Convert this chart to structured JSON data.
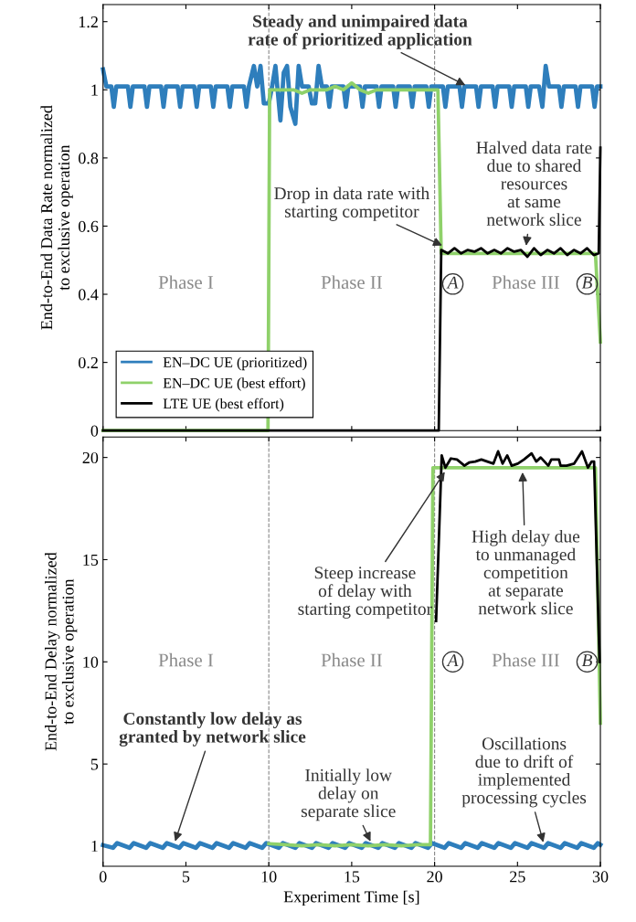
{
  "chart_data": [
    {
      "type": "line",
      "ylabel": "End-to-End Data Rate normalized\nto exclusive operation",
      "xlim": [
        0,
        30
      ],
      "xticks": [
        0,
        5,
        10,
        15,
        20,
        25,
        30
      ],
      "ylim": [
        0,
        1.25
      ],
      "yticks": [
        0,
        0.2,
        0.4,
        0.6,
        0.8,
        1,
        1.2
      ],
      "tick_labels": "y",
      "grid": false,
      "legend": "bottom left",
      "marker": "none",
      "line_style": "solid",
      "ref_lines": [
        {
          "axis": "x",
          "value": 10,
          "color": "#888888",
          "line_style": "dashed"
        },
        {
          "axis": "x",
          "value": 20,
          "color": "#888888",
          "line_style": "dashed"
        }
      ],
      "series": [
        {
          "name": "EN–DC UE (prioritized)",
          "color": "#2e7ebc",
          "x": [
            0,
            0.2,
            0.5,
            0.65,
            0.8,
            1.5,
            1.65,
            1.8,
            2.5,
            2.65,
            2.8,
            3.5,
            3.65,
            3.8,
            4.5,
            4.65,
            4.8,
            5.5,
            5.65,
            5.8,
            6.5,
            6.65,
            6.8,
            7.5,
            7.65,
            7.8,
            8.5,
            8.65,
            8.8,
            9.1,
            9.3,
            9.5,
            9.7,
            10.0,
            10.2,
            10.4,
            10.7,
            10.9,
            11.1,
            11.3,
            11.6,
            11.8,
            12.0,
            12.4,
            12.6,
            12.8,
            13.0,
            13.2,
            13.5,
            13.65,
            13.8,
            14.5,
            14.65,
            14.8,
            15.5,
            15.65,
            15.8,
            16.5,
            16.65,
            16.8,
            17.5,
            17.65,
            17.8,
            18.5,
            18.65,
            18.8,
            19.5,
            19.65,
            19.8,
            20.5,
            20.65,
            20.8,
            21.5,
            21.65,
            21.8,
            22.5,
            22.65,
            22.8,
            23.5,
            23.65,
            23.8,
            24.5,
            24.65,
            24.8,
            25.5,
            25.65,
            25.8,
            26.3,
            26.5,
            26.7,
            26.9,
            27.5,
            27.65,
            27.8,
            28.5,
            28.65,
            28.8,
            29.5,
            29.65,
            29.8,
            30
          ],
          "values": [
            1.06,
            1.01,
            1.01,
            0.95,
            1.01,
            1.01,
            0.95,
            1.01,
            1.01,
            0.95,
            1.01,
            1.01,
            0.95,
            1.01,
            1.01,
            0.95,
            1.01,
            1.01,
            0.95,
            1.01,
            1.01,
            0.95,
            1.01,
            1.01,
            0.95,
            1.01,
            1.01,
            0.95,
            1.01,
            1.07,
            1.01,
            1.07,
            0.96,
            0.96,
            1.01,
            1.07,
            0.91,
            1.05,
            1.07,
            0.95,
            0.9,
            1.07,
            1.01,
            1.01,
            0.96,
            0.96,
            1.07,
            1.01,
            1.01,
            0.95,
            1.01,
            1.01,
            0.95,
            1.01,
            1.01,
            0.95,
            1.01,
            1.01,
            0.95,
            1.01,
            1.01,
            0.95,
            1.01,
            1.01,
            0.95,
            1.01,
            1.01,
            0.95,
            1.01,
            1.01,
            0.95,
            1.01,
            1.01,
            0.95,
            1.01,
            1.01,
            0.95,
            1.01,
            1.01,
            0.95,
            1.01,
            1.01,
            0.95,
            1.01,
            1.01,
            0.95,
            1.01,
            1.01,
            0.95,
            1.07,
            1.01,
            1.01,
            0.95,
            1.01,
            1.01,
            0.95,
            1.01,
            1.01,
            0.95,
            1.01,
            1.01
          ]
        },
        {
          "name": "EN–DC UE (best effort)",
          "color": "#8fd16a",
          "x": [
            0,
            9.95,
            10.05,
            11.5,
            12.0,
            12.5,
            13.5,
            14,
            14.5,
            15,
            15.5,
            16,
            16.5,
            17,
            17.5,
            20.2,
            20.4,
            29.7,
            30
          ],
          "values": [
            0,
            0,
            1.0,
            1.0,
            0.99,
            1.0,
            1.0,
            1.01,
            1.0,
            1.02,
            1.0,
            0.99,
            1.0,
            1.0,
            1.0,
            1.0,
            0.52,
            0.52,
            0.26
          ]
        },
        {
          "name": "LTE UE (best effort)",
          "color": "#000000",
          "x": [
            0,
            20.25,
            20.4,
            20.8,
            21.2,
            21.6,
            22,
            22.4,
            22.8,
            23.2,
            23.6,
            24,
            24.4,
            24.8,
            25.2,
            25.6,
            26,
            26.4,
            26.8,
            27.2,
            27.6,
            28,
            28.4,
            28.8,
            29.2,
            29.6,
            29.9,
            30
          ],
          "values": [
            0,
            0,
            0.53,
            0.52,
            0.535,
            0.52,
            0.53,
            0.525,
            0.535,
            0.52,
            0.53,
            0.52,
            0.535,
            0.525,
            0.53,
            0.51,
            0.535,
            0.515,
            0.53,
            0.52,
            0.535,
            0.515,
            0.53,
            0.52,
            0.535,
            0.515,
            0.52,
            0.83
          ]
        }
      ],
      "annotations": [
        {
          "text": "Steady and unimpaired data\nrate of prioritized application",
          "x": 22,
          "y": 1.01
        },
        {
          "text": "Drop in data rate with\nstarting competitor",
          "x": 20.6,
          "y": 0.54
        },
        {
          "text": "Halved data rate\ndue to shared\nresources\nat same\nnetwork slice",
          "x": 25.5,
          "y": 0.535
        },
        "Phase I",
        "Phase II",
        "A",
        "Phase III",
        "B"
      ]
    },
    {
      "type": "line",
      "xlabel": "Experiment Time [s]",
      "ylabel": "End-to-End Delay normalized\nto exclusive operation",
      "xlim": [
        0,
        30
      ],
      "xticks": [
        0,
        5,
        10,
        15,
        20,
        25,
        30
      ],
      "ylim": [
        0,
        21
      ],
      "yticks": [
        1,
        5,
        10,
        15,
        20
      ],
      "grid": false,
      "marker": "none",
      "line_style": "solid",
      "ref_lines": [
        {
          "axis": "x",
          "value": 10,
          "color": "#888888",
          "line_style": "dashed"
        },
        {
          "axis": "x",
          "value": 20,
          "color": "#888888",
          "line_style": "dashed"
        }
      ],
      "series": [
        {
          "color": "#2e7ebc",
          "x": [
            0,
            0.6,
            0.85,
            1.6,
            1.85,
            2.6,
            2.85,
            3.6,
            3.85,
            4.6,
            4.85,
            5.6,
            5.85,
            6.6,
            6.85,
            7.6,
            7.85,
            8.6,
            8.85,
            9.6,
            9.85,
            10.6,
            10.85,
            11.6,
            11.85,
            12.6,
            12.85,
            13.6,
            13.85,
            14.6,
            14.85,
            15.6,
            15.85,
            16.6,
            16.85,
            17.6,
            17.85,
            18.6,
            18.85,
            19.6,
            19.85,
            20.6,
            20.85,
            21.6,
            21.85,
            22.6,
            22.85,
            23.6,
            23.85,
            24.6,
            24.85,
            25.6,
            25.85,
            26.6,
            26.85,
            27.6,
            27.85,
            28.6,
            28.85,
            29.6,
            29.85,
            30
          ],
          "values": [
            1.03,
            0.9,
            1.13,
            0.9,
            1.13,
            0.9,
            1.13,
            0.9,
            1.13,
            0.9,
            1.13,
            0.9,
            1.13,
            0.9,
            1.13,
            0.9,
            1.13,
            0.9,
            1.13,
            0.9,
            1.13,
            0.9,
            1.13,
            0.9,
            1.13,
            0.9,
            1.13,
            0.9,
            1.13,
            0.9,
            1.13,
            0.9,
            1.13,
            0.9,
            1.13,
            0.9,
            1.13,
            0.9,
            1.13,
            0.9,
            1.13,
            0.9,
            1.13,
            0.9,
            1.13,
            0.9,
            1.13,
            0.9,
            1.13,
            0.9,
            1.13,
            0.9,
            1.13,
            0.9,
            1.13,
            0.9,
            1.13,
            0.9,
            1.13,
            0.9,
            1.13,
            1.05
          ]
        },
        {
          "color": "#8fd16a",
          "x": [
            10,
            11,
            12,
            13,
            14,
            15,
            16,
            17,
            18,
            19,
            19.75,
            19.9,
            29.7,
            30
          ],
          "values": [
            1.1,
            1.05,
            1.0,
            1.05,
            1.0,
            1.05,
            1.0,
            1.05,
            1.0,
            1.05,
            1.05,
            19.5,
            19.5,
            7
          ]
        },
        {
          "color": "#000000",
          "x": [
            20.09,
            20.43,
            20.65,
            20.98,
            21.35,
            21.8,
            22.08,
            22.45,
            22.82,
            23.18,
            23.55,
            23.83,
            24.1,
            24.38,
            24.65,
            25.02,
            25.39,
            25.85,
            26.13,
            26.4,
            26.86,
            27.04,
            27.5,
            27.6,
            27.96,
            28.42,
            28.89,
            29.25,
            29.47,
            29.62,
            29.95
          ],
          "values": [
            12,
            20.1,
            19.5,
            19.95,
            19.9,
            19.6,
            19.75,
            19.8,
            19.9,
            19.8,
            19.7,
            20.3,
            19.7,
            20.1,
            19.6,
            19.7,
            19.9,
            20.2,
            19.8,
            20.0,
            19.6,
            19.9,
            19.9,
            19.6,
            19.6,
            19.7,
            20.3,
            19.5,
            19.8,
            19.8,
            10
          ]
        }
      ],
      "annotations": [
        {
          "text": "Constantly low delay as\ngranted by network slice",
          "x": 4.3,
          "y": 1.1
        },
        {
          "text": "Initially low\ndelay on\nseparate slice",
          "x": 16.2,
          "y": 1.1
        },
        {
          "text": "Steep increase\nof delay with\nstarting competitor",
          "x": 20.7,
          "y": 19.4
        },
        {
          "text": "High delay due\nto unmanaged\ncompetition\nat separate\nnetwork slice",
          "x": 25.3,
          "y": 19.4
        },
        {
          "text": "Oscillations\ndue to drift of\nimplemented\nprocessing cycles",
          "x": 26.6,
          "y": 1.05
        },
        "Phase I",
        "Phase II",
        "A",
        "Phase III",
        "B"
      ]
    }
  ]
}
